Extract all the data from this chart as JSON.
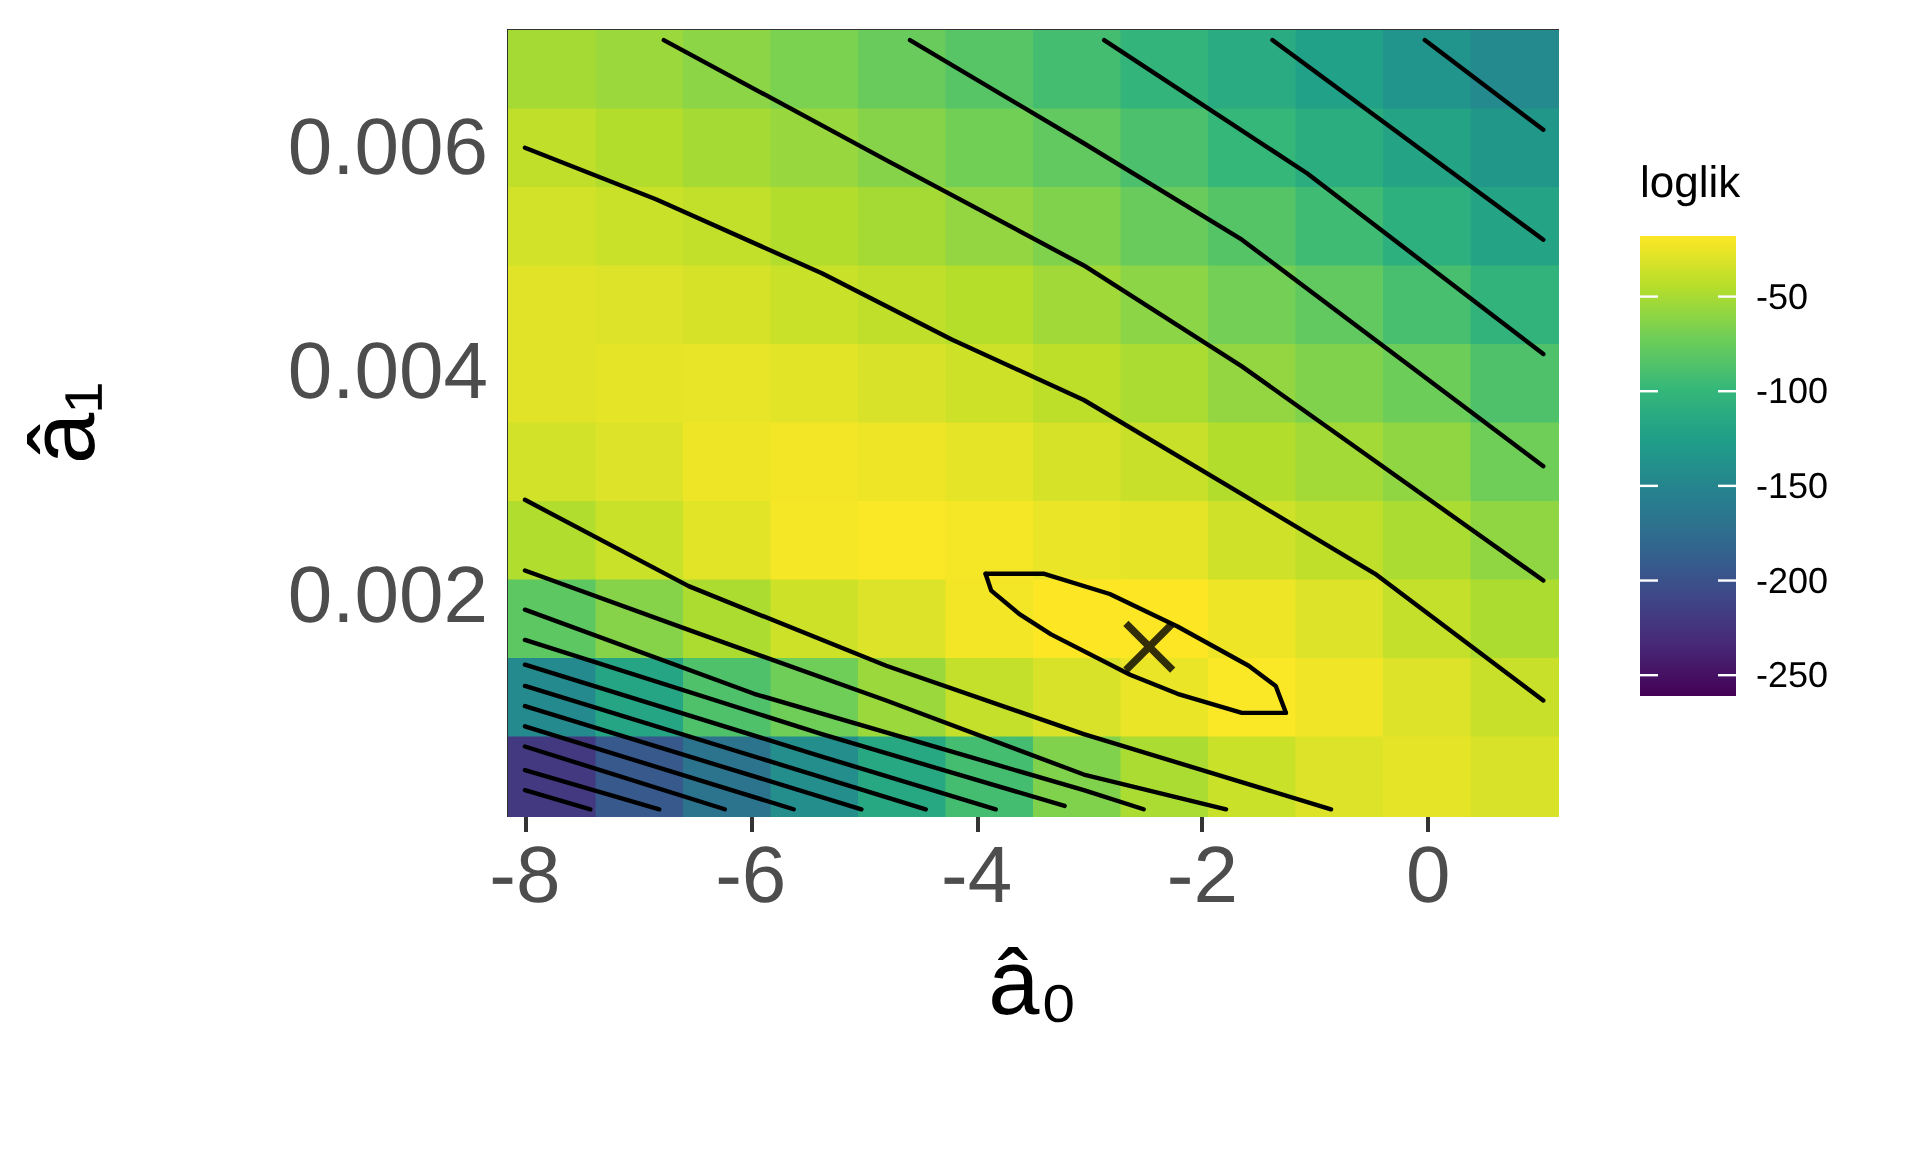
{
  "chart_data": {
    "type": "heatmap",
    "xlabel": "â₀",
    "ylabel": "â₁",
    "clabel": "loglik",
    "x": [
      -7.76,
      -6.99,
      -6.21,
      -5.44,
      -4.66,
      -3.89,
      -3.11,
      -2.34,
      -1.56,
      -0.79,
      -0.01,
      0.76
    ],
    "y": [
      0.0067,
      0.006,
      0.0053,
      0.0046,
      0.0039,
      0.0032,
      0.0025,
      0.0018,
      0.0011,
      0.0004
    ],
    "cells": [
      [
        -51,
        -55,
        -61,
        -67,
        -75,
        -83,
        -92,
        -102,
        -112,
        -123,
        -135,
        -145
      ],
      [
        -41,
        -46,
        -51,
        -56,
        -63,
        -71,
        -78,
        -88,
        -99,
        -110,
        -120,
        -133
      ],
      [
        -34,
        -37,
        -40,
        -46,
        -51,
        -58,
        -65,
        -75,
        -84,
        -94,
        -107,
        -119
      ],
      [
        -29,
        -30,
        -33,
        -37,
        -41,
        -45,
        -53,
        -61,
        -70,
        -78,
        -90,
        -103
      ],
      [
        -29,
        -27,
        -26,
        -28,
        -32,
        -36,
        -42,
        -49,
        -58,
        -65,
        -73,
        -87
      ],
      [
        -34,
        -30,
        -24,
        -22,
        -24,
        -27,
        -33,
        -38,
        -46,
        -52,
        -59,
        -72
      ],
      [
        -47,
        -37,
        -28,
        -21,
        -19,
        -21,
        -25,
        -27,
        -35,
        -41,
        -49,
        -59
      ],
      [
        -80,
        -63,
        -48,
        -36,
        -30,
        -22,
        -17,
        -15,
        -24,
        -30,
        -39,
        -48
      ],
      [
        -145,
        -118,
        -87,
        -72,
        -55,
        -39,
        -32,
        -25,
        -19,
        -23,
        -30,
        -38
      ],
      [
        -220,
        -193,
        -168,
        -141,
        -115,
        -92,
        -65,
        -49,
        -37,
        -30,
        -27,
        -32
      ]
    ],
    "clim": [
      -261,
      -18
    ],
    "cticks": [
      -50,
      -100,
      -150,
      -200,
      -250
    ],
    "xlim": [
      -8.15,
      1.15
    ],
    "xticks": [
      -8,
      -6,
      -4,
      -2,
      0
    ],
    "ylim": [
      4e-05,
      0.00705
    ],
    "yticks": [
      0.002,
      0.004,
      0.006
    ],
    "series": [
      {
        "type": "line",
        "color": "#000000",
        "x": [
          -8,
          -6.84,
          -5.37,
          -4.22,
          -3.05,
          -1.65,
          -0.47,
          1.02
        ],
        "values": [
          0.006,
          0.00554,
          0.00488,
          0.00429,
          0.00375,
          0.00291,
          0.0022,
          0.00107
        ]
      },
      {
        "type": "line",
        "color": "#000000",
        "x": [
          -6.77,
          -4.8,
          -3.05,
          -1.65,
          1.02
        ],
        "values": [
          0.00696,
          0.00589,
          0.00495,
          0.00405,
          0.00214
        ]
      },
      {
        "type": "line",
        "color": "#000000",
        "x": [
          -4.59,
          -3.05,
          -1.65,
          1.02
        ],
        "values": [
          0.00696,
          0.00604,
          0.00518,
          0.00316
        ]
      },
      {
        "type": "line",
        "color": "#000000",
        "x": [
          -2.87,
          -1.07,
          1.02
        ],
        "values": [
          0.00696,
          0.00577,
          0.00416
        ]
      },
      {
        "type": "line",
        "color": "#000000",
        "x": [
          -1.38,
          1.02
        ],
        "values": [
          0.00696,
          0.00518
        ]
      },
      {
        "type": "line",
        "color": "#000000",
        "x": [
          -0.03,
          1.02
        ],
        "values": [
          0.00696,
          0.00616
        ]
      },
      {
        "type": "line",
        "color": "#000000",
        "x": [
          -3.92,
          -3.4,
          -2.82,
          -2.22,
          -1.59,
          -1.35,
          -1.26
        ],
        "values": [
          0.0022,
          0.0022,
          0.00202,
          0.00173,
          0.00138,
          0.0012,
          0.00096
        ]
      },
      {
        "type": "line",
        "color": "#000000",
        "x": [
          -3.92,
          -3.87,
          -3.62,
          -3.34,
          -2.64,
          -2.22,
          -1.65,
          -1.26
        ],
        "values": [
          0.0022,
          0.00205,
          0.00184,
          0.00166,
          0.0013,
          0.00113,
          0.00096,
          0.00096
        ]
      },
      {
        "type": "line",
        "color": "#000000",
        "x": [
          -8,
          -6.55,
          -4.8,
          -3.05,
          -0.86
        ],
        "values": [
          0.00286,
          0.00209,
          0.00138,
          0.00077,
          0.0001
        ]
      },
      {
        "type": "line",
        "color": "#000000",
        "x": [
          -8,
          -6.55,
          -4.8,
          -3.05,
          -1.79
        ],
        "values": [
          0.00223,
          0.0017,
          0.00107,
          0.00041,
          0.0001
        ]
      },
      {
        "type": "line",
        "color": "#000000",
        "x": [
          -8,
          -5.97,
          -3.05,
          -2.52
        ],
        "values": [
          0.00188,
          0.00113,
          0.00027,
          0.0001
        ]
      },
      {
        "type": "line",
        "color": "#000000",
        "x": [
          -8,
          -5.37,
          -3.22
        ],
        "values": [
          0.00161,
          0.00077,
          0.00013
        ]
      },
      {
        "type": "line",
        "color": "#000000",
        "x": [
          -8,
          -5.37,
          -3.83
        ],
        "values": [
          0.00139,
          0.00057,
          0.0001
        ]
      },
      {
        "type": "line",
        "color": "#000000",
        "x": [
          -8,
          -4.45
        ],
        "values": [
          0.0012,
          0.0001
        ]
      },
      {
        "type": "line",
        "color": "#000000",
        "x": [
          -8,
          -5.02
        ],
        "values": [
          0.00102,
          0.0001
        ]
      },
      {
        "type": "line",
        "color": "#000000",
        "x": [
          -8,
          -5.62
        ],
        "values": [
          0.00084,
          0.0001
        ]
      },
      {
        "type": "line",
        "color": "#000000",
        "x": [
          -8,
          -6.23
        ],
        "values": [
          0.00066,
          0.0001
        ]
      },
      {
        "type": "line",
        "color": "#000000",
        "x": [
          -8,
          -6.81
        ],
        "values": [
          0.00045,
          0.0001
        ]
      },
      {
        "type": "line",
        "color": "#000000",
        "x": [
          -8,
          -7.42
        ],
        "values": [
          0.00027,
          0.0001
        ]
      },
      {
        "type": "scatter",
        "marker": "cross",
        "color": "#000000",
        "x": [
          -2.47
        ],
        "values": [
          0.00155
        ]
      }
    ]
  }
}
